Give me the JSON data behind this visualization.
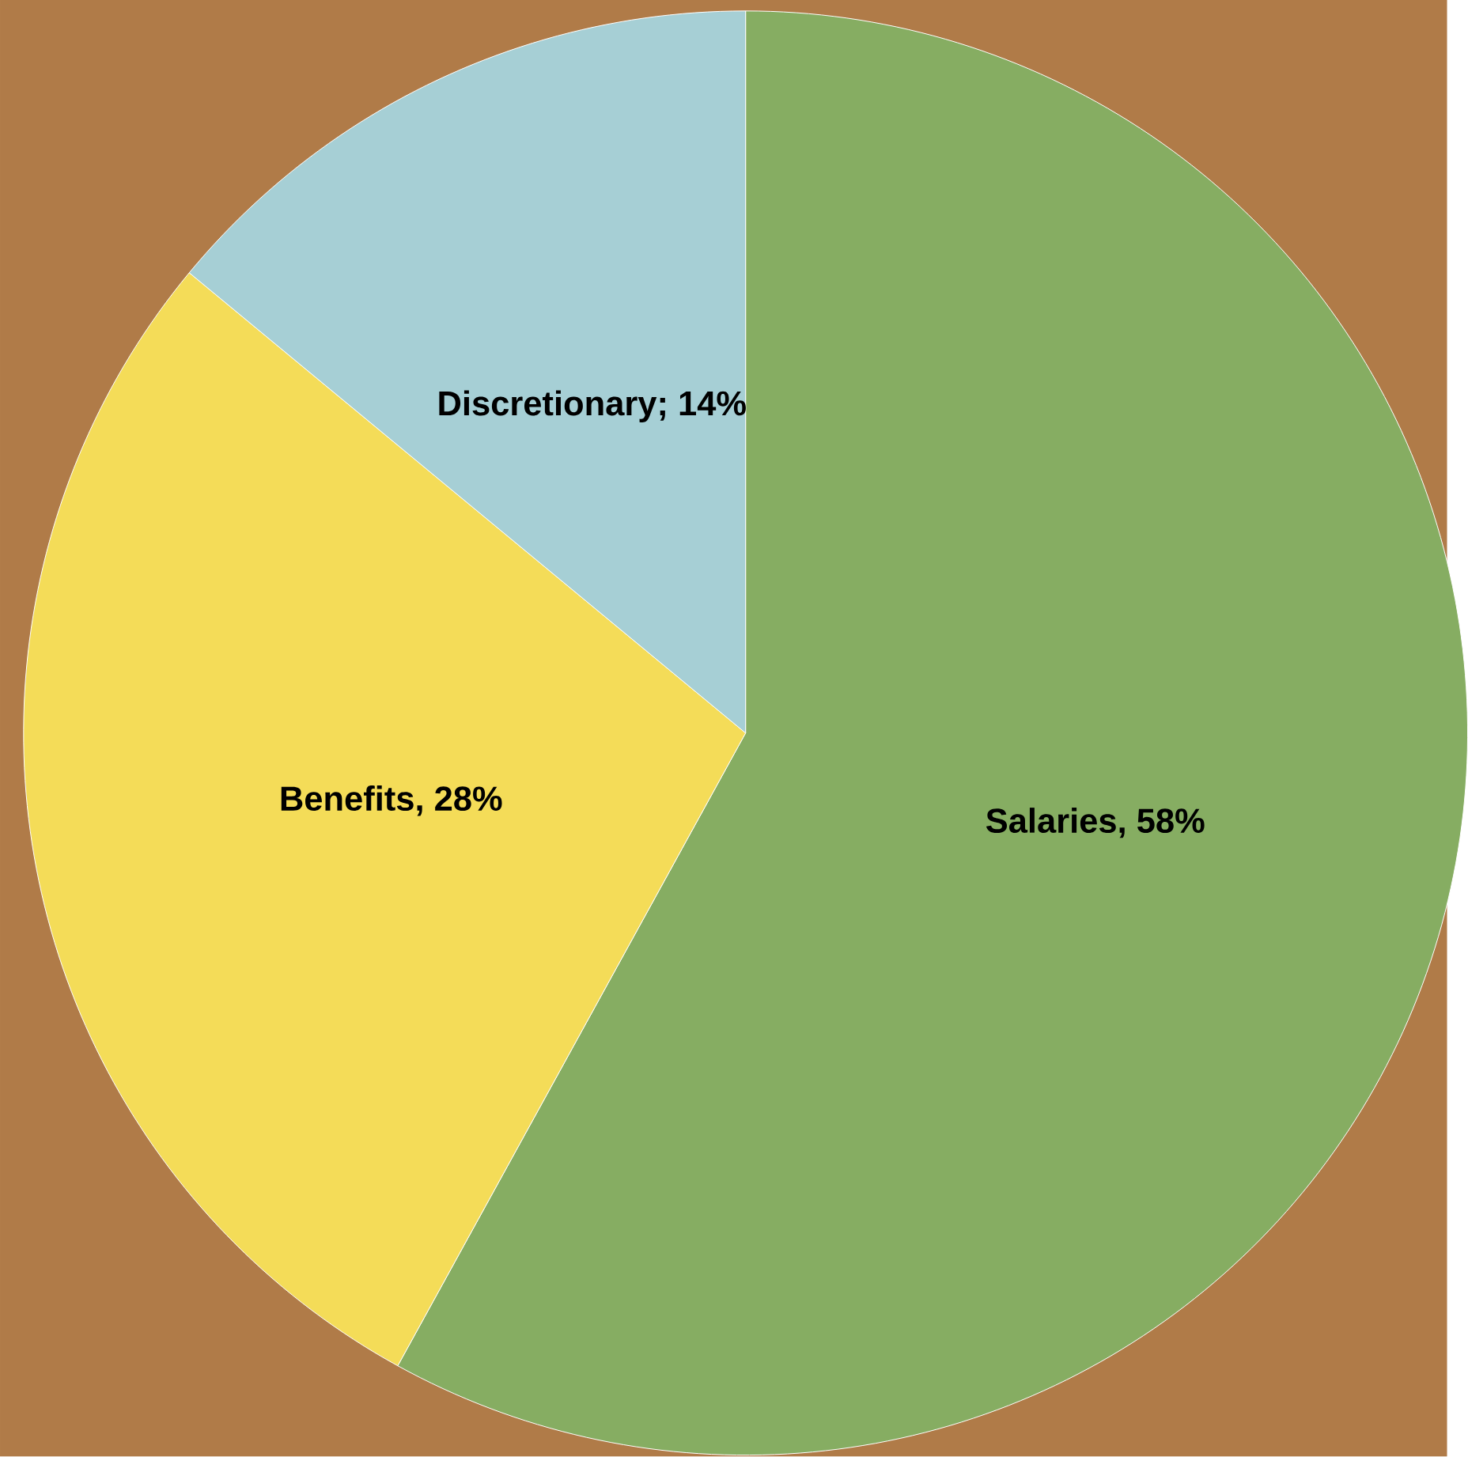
{
  "chart_data": {
    "type": "pie",
    "categories": [
      "Salaries",
      "Benefits",
      "Discretionary"
    ],
    "values": [
      58,
      28,
      14
    ],
    "value_labels": [
      ", 58%",
      ", 28%",
      "; 14%"
    ],
    "colors": [
      "#86ad62",
      "#f4dc58",
      "#a6cfd5"
    ],
    "legend": false
  }
}
